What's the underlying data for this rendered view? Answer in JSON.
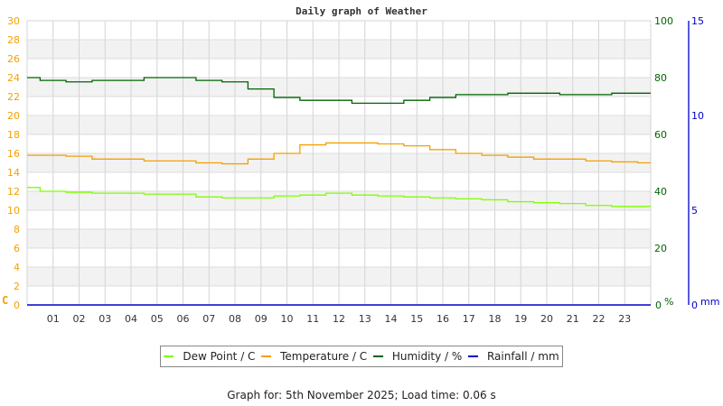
{
  "chart_data": {
    "type": "line",
    "title": "Daily graph of Weather",
    "xlabel": "",
    "x_ticks": [
      "01",
      "02",
      "03",
      "04",
      "05",
      "06",
      "07",
      "08",
      "09",
      "10",
      "11",
      "12",
      "13",
      "14",
      "15",
      "16",
      "17",
      "18",
      "19",
      "20",
      "21",
      "22",
      "23"
    ],
    "x": [
      0,
      1,
      2,
      3,
      4,
      5,
      6,
      7,
      8,
      9,
      10,
      11,
      12,
      13,
      14,
      15,
      16,
      17,
      18,
      19,
      20,
      21,
      22,
      23,
      24
    ],
    "axes": {
      "left": {
        "label": "C",
        "ticks": [
          0,
          2,
          4,
          6,
          8,
          10,
          12,
          14,
          16,
          18,
          20,
          22,
          24,
          26,
          28,
          30
        ],
        "range": [
          0,
          30
        ],
        "color": "#f5a000"
      },
      "right_humidity": {
        "label": "%",
        "ticks": [
          0,
          20,
          40,
          60,
          80,
          100
        ],
        "range": [
          0,
          100
        ],
        "color": "#006400"
      },
      "right_rain": {
        "label": "mm",
        "ticks": [
          0,
          5,
          10,
          15
        ],
        "range": [
          0,
          15
        ],
        "color": "#0000c8"
      }
    },
    "grid": true,
    "legend_position": "bottom",
    "series": [
      {
        "name": "Dew Point / C",
        "axis": "left",
        "color": "#7fff00",
        "values": [
          12.4,
          12.0,
          11.9,
          11.8,
          11.8,
          11.7,
          11.7,
          11.4,
          11.3,
          11.3,
          11.5,
          11.6,
          11.8,
          11.6,
          11.5,
          11.4,
          11.3,
          11.2,
          11.1,
          10.9,
          10.8,
          10.7,
          10.5,
          10.4,
          10.4
        ]
      },
      {
        "name": "Temperature / C",
        "axis": "left",
        "color": "#f5a000",
        "values": [
          15.8,
          15.8,
          15.7,
          15.4,
          15.4,
          15.2,
          15.2,
          15.0,
          14.9,
          15.4,
          16.0,
          16.9,
          17.1,
          17.1,
          17.0,
          16.8,
          16.4,
          16.0,
          15.8,
          15.6,
          15.4,
          15.4,
          15.2,
          15.1,
          15.0
        ]
      },
      {
        "name": "Humidity / %",
        "axis": "right_humidity",
        "color": "#006400",
        "values": [
          80,
          79,
          78.5,
          79,
          79,
          80,
          80,
          79,
          78.5,
          76,
          73,
          72,
          72,
          71,
          71,
          72,
          73,
          74,
          74,
          74.5,
          74.5,
          74,
          74,
          74.5,
          74.5
        ]
      },
      {
        "name": "Rainfall / mm",
        "axis": "right_rain",
        "color": "#0000c8",
        "values": [
          0,
          0,
          0,
          0,
          0,
          0,
          0,
          0,
          0,
          0,
          0,
          0,
          0,
          0,
          0,
          0,
          0,
          0,
          0,
          0,
          0,
          0,
          0,
          0,
          0
        ]
      }
    ]
  },
  "header": {
    "title": "Daily graph of Weather"
  },
  "legend": [
    {
      "label": "Dew Point / C",
      "color": "#7fff00"
    },
    {
      "label": "Temperature / C",
      "color": "#f5a000"
    },
    {
      "label": "Humidity / %",
      "color": "#006400"
    },
    {
      "label": "Rainfall / mm",
      "color": "#0000c8"
    }
  ],
  "footer": {
    "text": "Graph for: 5th November 2025; Load time: 0.06 s"
  }
}
